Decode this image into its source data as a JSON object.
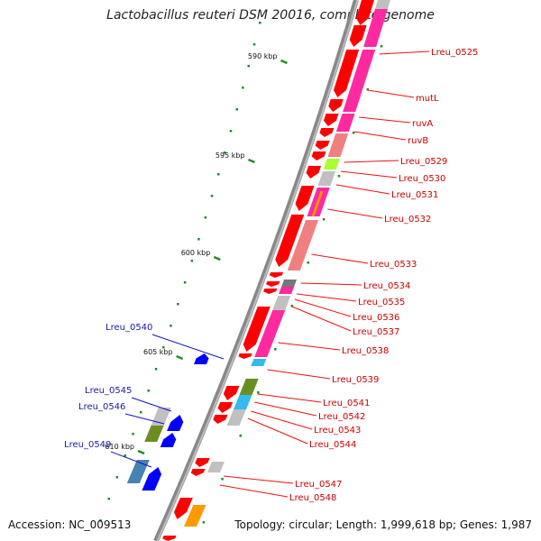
{
  "title": "Lactobacillus reuteri DSM 20016, complete genome",
  "accession": "Accession: NC_009513",
  "topology": "Topology: circular; Length: 1,999,618 bp; Genes: 1,987",
  "ticks": [
    "590 kbp",
    "595 kbp",
    "600 kbp",
    "605 kbp",
    "610 kbp"
  ],
  "genes_plus": [
    "Lreu_0525",
    "mutL",
    "ruvA",
    "ruvB",
    "Lreu_0529",
    "Lreu_0530",
    "Lreu_0531",
    "Lreu_0532",
    "Lreu_0533",
    "Lreu_0534",
    "Lreu_0535",
    "Lreu_0536",
    "Lreu_0537",
    "Lreu_0538",
    "Lreu_0539",
    "Lreu_0541",
    "Lreu_0542",
    "Lreu_0543",
    "Lreu_0544",
    "Lreu_0547",
    "Lreu_0548"
  ],
  "genes_minus": [
    "Lreu_0540",
    "Lreu_0545",
    "Lreu_0546",
    "Lreu_0549"
  ],
  "colors": {
    "plus_strand": "#ff0000",
    "minus_strand": "#0000ff",
    "plus_label": "#cc0000",
    "minus_label": "#1a1aaa",
    "backbone": "#888888",
    "tick": "#228b22",
    "cog_magenta": "#ff2aa0",
    "cog_salmon": "#f08080",
    "cog_grey": "#c0c0c0",
    "cog_lime": "#aaff33",
    "cog_olive": "#6b8e23",
    "cog_skyblue": "#33bbee",
    "cog_steelblue": "#4682b4",
    "cog_orange": "#ff9900"
  }
}
